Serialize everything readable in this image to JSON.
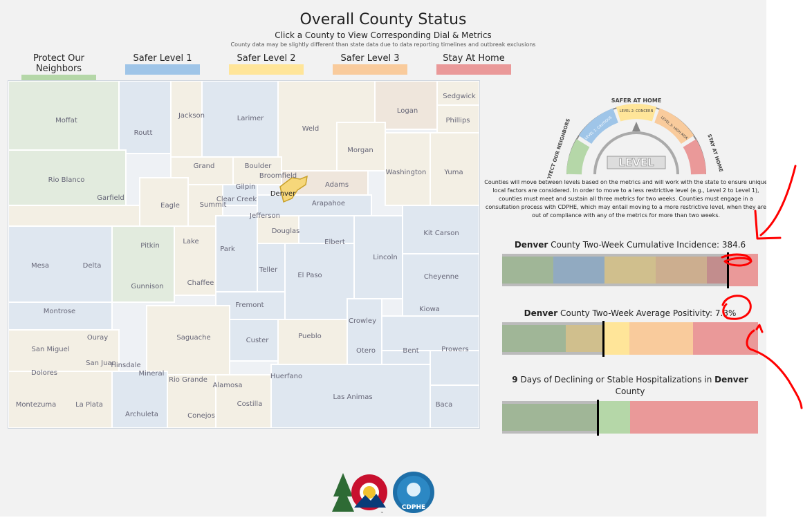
{
  "header": {
    "title": "Overall County Status",
    "subtitle": "Click a County to View Corresponding Dial & Metrics",
    "note": "County data may be slightly different than state data due to data reporting timelines and outbreak exclusions"
  },
  "legend": [
    {
      "label": "Protect Our Neighbors",
      "color": "#b5d7a8"
    },
    {
      "label": "Safer Level 1",
      "color": "#9fc5e8"
    },
    {
      "label": "Safer Level 2",
      "color": "#ffe599"
    },
    {
      "label": "Safer Level 3",
      "color": "#f9cb9c"
    },
    {
      "label": "Stay At Home",
      "color": "#ea9999"
    }
  ],
  "counties": [
    "Moffat",
    "Routt",
    "Jackson",
    "Larimer",
    "Weld",
    "Logan",
    "Sedgwick",
    "Phillips",
    "Morgan",
    "Rio Blanco",
    "Grand",
    "Boulder",
    "Broomfield",
    "Adams",
    "Washington",
    "Yuma",
    "Gilpin",
    "Denver",
    "Clear Creek",
    "Garfield",
    "Eagle",
    "Summit",
    "Arapahoe",
    "Jefferson",
    "Douglas",
    "Kit Carson",
    "Pitkin",
    "Lake",
    "Park",
    "Elbert",
    "Lincoln",
    "Mesa",
    "Delta",
    "Teller",
    "Gunnison",
    "Chaffee",
    "El Paso",
    "Cheyenne",
    "Montrose",
    "Fremont",
    "Kiowa",
    "Crowley",
    "Ouray",
    "Saguache",
    "Custer",
    "Pueblo",
    "San Miguel",
    "Otero",
    "Bent",
    "Prowers",
    "San Juan",
    "Hinsdale",
    "Mineral",
    "Dolores",
    "Rio Grande",
    "Alamosa",
    "Huerfano",
    "Montezuma",
    "La Plata",
    "Las Animas",
    "Baca",
    "Archuleta",
    "Conejos",
    "Costilla"
  ],
  "dial": {
    "top_label": "SAFER AT HOME",
    "left_label": "PROTECT OUR NEIGHBORS",
    "right_label": "STAY AT HOME",
    "level1": "LEVEL 1: CAUTIOUS",
    "level2": "LEVEL 2: CONCERN",
    "level3": "LEVEL 3: HIGH RISK",
    "center": "LEVEL",
    "description": "Counties will move between levels based on the metrics and will work with the state to ensure unique local factors are considered. In order to move to a less restrictive level (e.g., Level 2 to Level 1), counties must meet and sustain all three metrics for two weeks. Counties must engage in a consultation process with CDPHE, which may entail moving to a more restrictive level, when they are out of compliance with any of the metrics for more than two weeks."
  },
  "metrics": {
    "incidence": {
      "county": "Denver",
      "text": " County Two-Week Cumulative Incidence: ",
      "value": "384.6"
    },
    "positivity": {
      "county": "Denver",
      "text": " County Two-Week Average Positivity: ",
      "value": "7.3%"
    },
    "hospital": {
      "days": "9",
      "text": " Days of Declining or Stable Hospitalizations in ",
      "county": "Denver",
      "suffix": "County"
    }
  },
  "logos": {
    "cdphe": "CDPHE"
  }
}
